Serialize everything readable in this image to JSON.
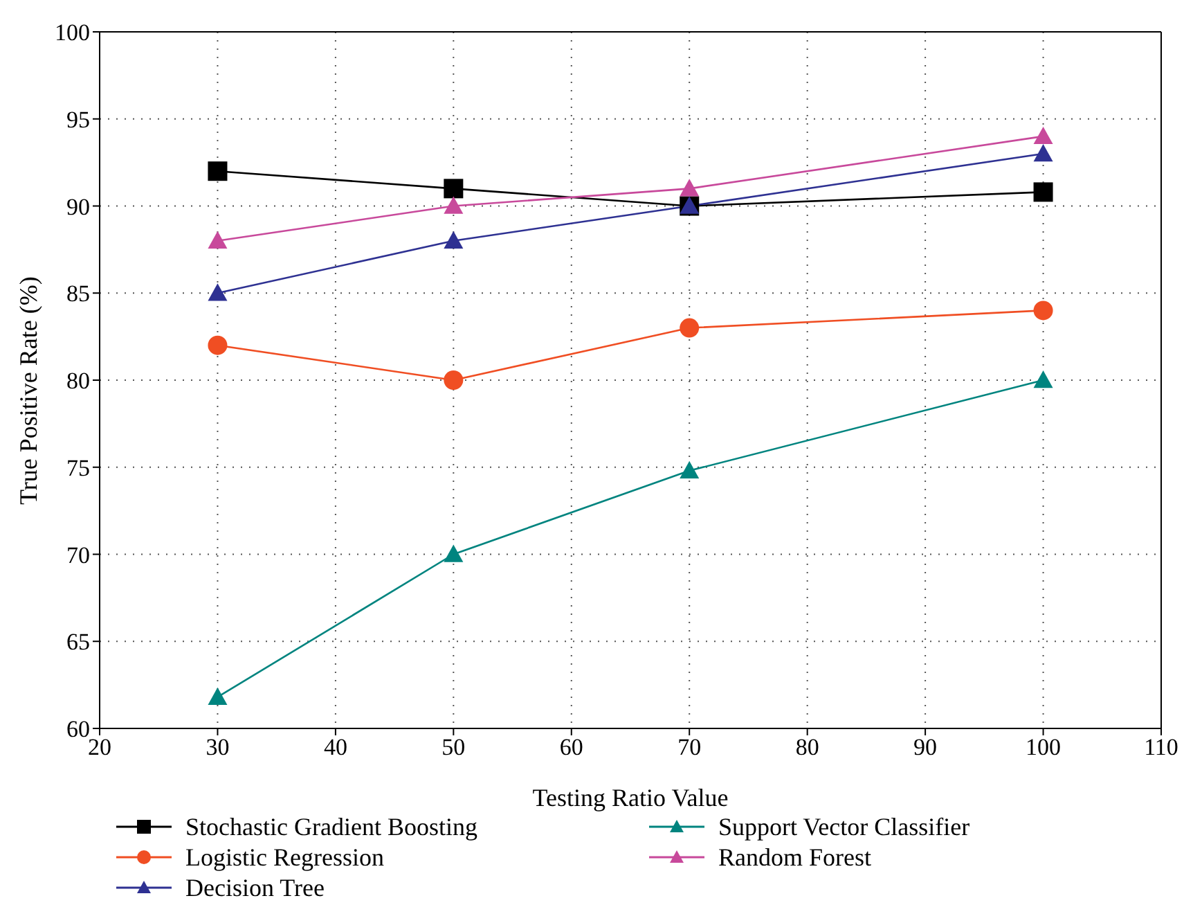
{
  "chart_data": {
    "type": "line",
    "xlabel": "Testing Ratio Value",
    "ylabel": "True Positive Rate (%)",
    "x": [
      30,
      50,
      70,
      100
    ],
    "series": [
      {
        "name": "Stochastic Gradient Boosting",
        "color": "#000000",
        "marker": "square",
        "values": [
          92,
          91,
          90,
          90.8
        ]
      },
      {
        "name": "Logistic Regression",
        "color": "#f04e23",
        "marker": "circle",
        "values": [
          82,
          80,
          83,
          84
        ]
      },
      {
        "name": "Decision Tree",
        "color": "#2e3192",
        "marker": "triangle",
        "values": [
          85,
          88,
          90,
          93
        ]
      },
      {
        "name": "Support Vector Classifier",
        "color": "#00847f",
        "marker": "triangle",
        "values": [
          61.8,
          70,
          74.8,
          80
        ]
      },
      {
        "name": "Random Forest",
        "color": "#c8499b",
        "marker": "triangle",
        "values": [
          88,
          90,
          91,
          94
        ]
      }
    ],
    "xlim": [
      20,
      110
    ],
    "xticks": [
      20,
      30,
      40,
      50,
      60,
      70,
      80,
      90,
      100,
      110
    ],
    "ylim": [
      60,
      100
    ],
    "yticks": [
      60,
      65,
      70,
      75,
      80,
      85,
      90,
      95,
      100
    ],
    "grid": true,
    "legend": "bottom",
    "line_style": "solid"
  }
}
